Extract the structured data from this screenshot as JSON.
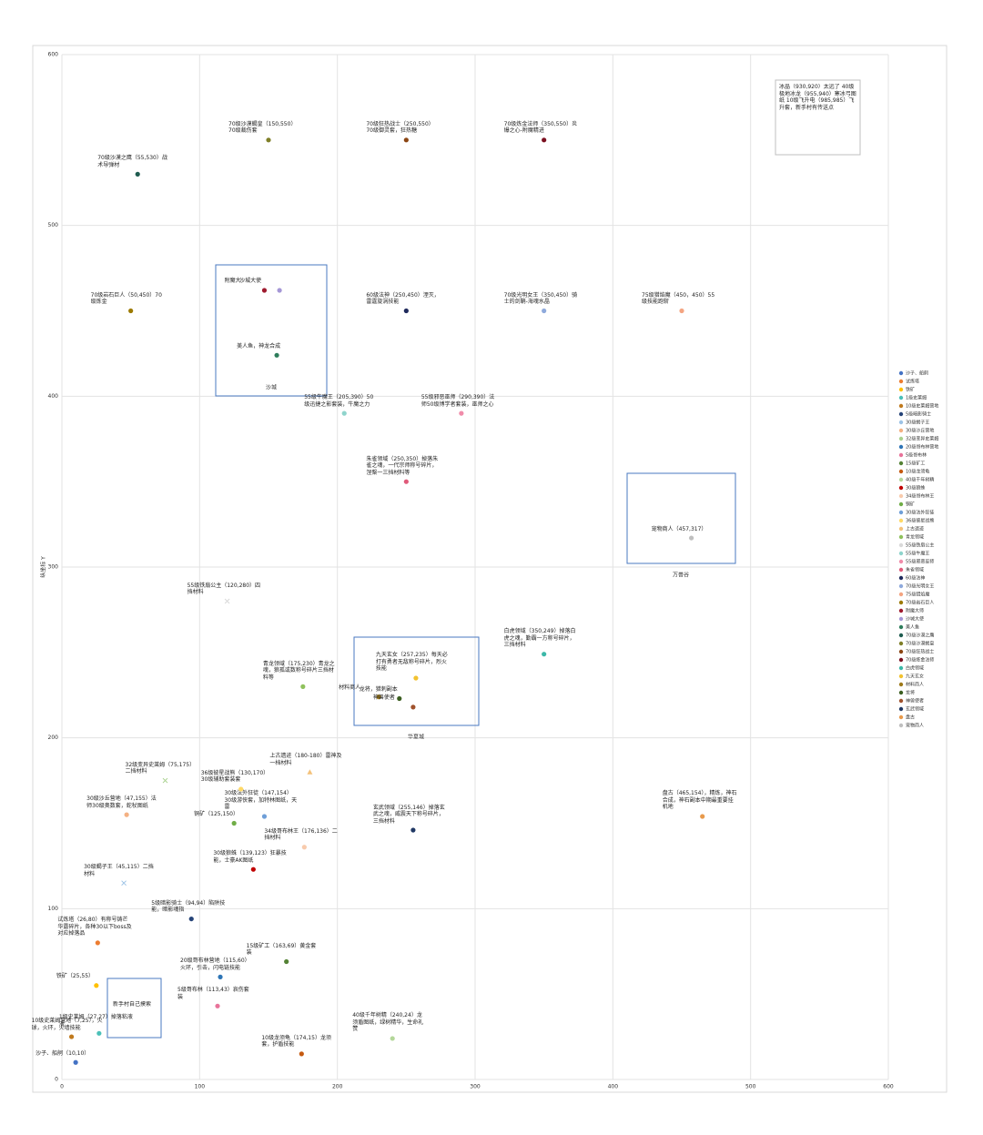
{
  "chart_data": {
    "type": "scatter",
    "ylabel": "纵坐标 Y",
    "xlim": [
      0,
      600
    ],
    "ylim": [
      0,
      600
    ],
    "xticks": [
      0,
      100,
      200,
      300,
      400,
      500,
      600
    ],
    "yticks": [
      0,
      100,
      200,
      300,
      400,
      500,
      600
    ],
    "grid": true,
    "legend": "right",
    "series": [
      {
        "name": "沙子、船舸",
        "color": "#4472c4",
        "marker": "circle",
        "x": [
          10
        ],
        "values": [
          10
        ],
        "label": "沙子、船舸（10,10）"
      },
      {
        "name": "试炼塔",
        "color": "#ed7d31",
        "marker": "circle",
        "x": [
          26
        ],
        "values": [
          80
        ],
        "label": "试炼塔（26,80）有称号铸芒华露碎片，各种30以下boss及对应掉落品"
      },
      {
        "name": "铁矿",
        "color": "#ffc000",
        "marker": "circle",
        "x": [
          25
        ],
        "values": [
          55
        ],
        "label": "铁矿（25,55）"
      },
      {
        "name": "1级史莱姆",
        "color": "#4bc0b8",
        "marker": "circle",
        "x": [
          27
        ],
        "values": [
          27
        ],
        "label": "1级史莱姆（27,27）掉落粘液液"
      },
      {
        "name": "10级史莱姆营地",
        "color": "#c07a1e",
        "marker": "circle",
        "x": [
          7
        ],
        "values": [
          25
        ],
        "label": "10级史莱姆营地（7,25），火球，火环，火墙技能"
      },
      {
        "name": "5级暗影骑士",
        "color": "#264478",
        "marker": "circle",
        "x": [
          94
        ],
        "values": [
          94
        ],
        "label": "5级暗影骑士（94,94）陷阱技能，暗影魂指"
      },
      {
        "name": "30级蝎子王",
        "color": "#9dc3e6",
        "marker": "x",
        "x": [
          45
        ],
        "values": [
          115
        ],
        "label": "30级蝎子王（45,115）二挡材料"
      },
      {
        "name": "30级沙丘营地",
        "color": "#f4b183",
        "marker": "circle",
        "x": [
          47
        ],
        "values": [
          155
        ],
        "label": "30级沙丘营地（47,155）法师30级奥数套，蛇杖图纸"
      },
      {
        "name": "32级变异史莱姆",
        "color": "#a9d18e",
        "marker": "x",
        "x": [
          75
        ],
        "values": [
          175
        ],
        "label": "32级变异史莱姆（75,175）二挡材料"
      },
      {
        "name": "20级哥布林营地",
        "color": "#2e75b6",
        "marker": "circle",
        "x": [
          115
        ],
        "values": [
          60
        ],
        "label": "20级哥布林营地（115,60）火环，引击，闪电链技能"
      },
      {
        "name": "5级哥布林",
        "color": "#e8739a",
        "marker": "circle",
        "x": [
          113
        ],
        "values": [
          43
        ],
        "label": "5级哥布林（113,43）哀伤套装"
      },
      {
        "name": "15级矿工",
        "color": "#548235",
        "marker": "circle",
        "x": [
          163
        ],
        "values": [
          69
        ],
        "label": "15级矿工（163,69）黄金套装"
      },
      {
        "name": "10级龙须龟",
        "color": "#c55a11",
        "marker": "circle",
        "x": [
          174
        ],
        "values": [
          15
        ],
        "label": "10级龙须龟（174,15）龙须套，护盾技能"
      },
      {
        "name": "40级千年树精",
        "color": "#b4d79a",
        "marker": "circle",
        "x": [
          240
        ],
        "values": [
          24
        ],
        "label": "40级千年树精（240,24）龙须盾图纸，绿树精华，生命礼赞"
      },
      {
        "name": "30级狼蛛",
        "color": "#c00000",
        "marker": "circle",
        "x": [
          139
        ],
        "values": [
          123
        ],
        "label": "30级狼蛛（139,123）狂暴技能，士豪AK图纸"
      },
      {
        "name": "34级哥布林王",
        "color": "#f8cbad",
        "marker": "circle",
        "x": [
          176
        ],
        "values": [
          136
        ],
        "label": "34级哥布林王（176,136）二挡材料"
      },
      {
        "name": "铜矿",
        "color": "#70ad47",
        "marker": "circle",
        "x": [
          125
        ],
        "values": [
          150
        ],
        "label": "铜矿（125,150）"
      },
      {
        "name": "30级法外狂徒",
        "color": "#6f9fd8",
        "marker": "circle",
        "x": [
          147
        ],
        "values": [
          154
        ],
        "label": "30级法外狂徒（147,154）30级游侠套，加特林图纸，天雷"
      },
      {
        "name": "36级彼星战熊",
        "color": "#ffd966",
        "marker": "circle",
        "x": [
          130
        ],
        "values": [
          170
        ],
        "label": "36级彼星战熊（130,170）30级辅助套装套"
      },
      {
        "name": "上古遗迹",
        "color": "#f4c27a",
        "marker": "triangle",
        "x": [
          180
        ],
        "values": [
          180
        ],
        "label": "上古遗迹（180-180）雷神及一档材料"
      },
      {
        "name": "青龙领域",
        "color": "#8fc15c",
        "marker": "circle",
        "x": [
          175
        ],
        "values": [
          230
        ],
        "label": "青龙领域（175,230）青龙之魂，狼孤或数称号碎片三挡材料等"
      },
      {
        "name": "55级铁扇公主",
        "color": "#d9d9d9",
        "marker": "x",
        "x": [
          120
        ],
        "values": [
          280
        ],
        "label": "55级铁扇公主（120,280）四挡材料"
      },
      {
        "name": "55级牛魔王",
        "color": "#8fd4cc",
        "marker": "circle",
        "x": [
          205
        ],
        "values": [
          390
        ],
        "label": "55级牛魔王（205,390）50级迅捷之影套装，牛魔之力"
      },
      {
        "name": "55级邪恶巫师",
        "color": "#f08caa",
        "marker": "circle",
        "x": [
          290
        ],
        "values": [
          390
        ],
        "label": "55级邪恶巫师（290,390）法师50级博学者套装，巫师之心"
      },
      {
        "name": "朱雀领域",
        "color": "#e05a7a",
        "marker": "circle",
        "x": [
          250
        ],
        "values": [
          350
        ],
        "label": "朱雀领域（250,350）掉落朱雀之魂，一代宗师称号碎片，涅槃一三挡材料等"
      },
      {
        "name": "60级法神",
        "color": "#1f2a5c",
        "marker": "circle",
        "x": [
          250
        ],
        "values": [
          450
        ],
        "label": "60级法神（250,450）湮灭，雷霆旋涡技能"
      },
      {
        "name": "70级光明女王",
        "color": "#8faadc",
        "marker": "circle",
        "x": [
          350
        ],
        "values": [
          450
        ],
        "label": "70级光明女王（350,450）骑士的剑鞘-海魂水晶"
      },
      {
        "name": "75级猎焰魔",
        "color": "#f4a582",
        "marker": "circle",
        "x": [
          450
        ],
        "values": [
          450
        ],
        "label": "75级猎焰魔（450，450）55级技能跑斩"
      },
      {
        "name": "70级岩石巨人",
        "color": "#9c7a00",
        "marker": "circle",
        "x": [
          50
        ],
        "values": [
          450
        ],
        "label": "70级岩石巨人（50,450）70级炼金"
      },
      {
        "name": "附魔大师",
        "color": "#9e1a2e",
        "marker": "circle",
        "x": [
          147
        ],
        "values": [
          462
        ],
        "label": "附魔大"
      },
      {
        "name": "沙城大使",
        "color": "#a597d6",
        "marker": "circle",
        "x": [
          158
        ],
        "values": [
          462
        ],
        "label": "沙城大使"
      },
      {
        "name": "美人鱼",
        "color": "#2e7d5b",
        "marker": "circle",
        "x": [
          156
        ],
        "values": [
          424
        ],
        "label": "美人鱼，神龙合成"
      },
      {
        "name": "70级沙漠之鹰",
        "color": "#1f5c50",
        "marker": "circle",
        "x": [
          55
        ],
        "values": [
          530
        ],
        "label": "70级沙漠之鹰（55,530）战术导弹材"
      },
      {
        "name": "70级沙漠蝎皇",
        "color": "#7f7f28",
        "marker": "circle",
        "x": [
          150
        ],
        "values": [
          550
        ],
        "label": "70级沙漠蝎皇（150,550）70级裁伤套"
      },
      {
        "name": "70级狂热战士",
        "color": "#8b4513",
        "marker": "circle",
        "x": [
          250
        ],
        "values": [
          550
        ],
        "label": "70级狂热战士（250,550）70级御灵套，狂热糖"
      },
      {
        "name": "70级炼金法师",
        "color": "#7b1020",
        "marker": "circle",
        "x": [
          350
        ],
        "values": [
          550
        ],
        "label": "70级炼金法师（350,550）炎爆之心-附魔精进"
      },
      {
        "name": "白虎领域",
        "color": "#3cb8a8",
        "marker": "circle",
        "x": [
          350
        ],
        "values": [
          249
        ],
        "label": "白虎领域（350,249）掉落白虎之魂，勤霸一方称号碎片，三挡材料"
      },
      {
        "name": "九天玄女",
        "color": "#f2c230",
        "marker": "circle",
        "x": [
          257
        ],
        "values": [
          235
        ],
        "label": "九天玄女（257,235）每天必打有勇者无敌称号碎片，烈火技能"
      },
      {
        "name": "材料商人",
        "color": "#9e7a1a",
        "marker": "circle",
        "x": [
          230
        ],
        "values": [
          224
        ],
        "label": "材料商人"
      },
      {
        "name": "龙将",
        "color": "#3b5e20",
        "marker": "circle",
        "x": [
          245
        ],
        "values": [
          223
        ],
        "label": "龙将，猎刺副本"
      },
      {
        "name": "神兽使者",
        "color": "#a0522d",
        "marker": "circle",
        "x": [
          255
        ],
        "values": [
          218
        ],
        "label": "神兽使者"
      },
      {
        "name": "玄武领域",
        "color": "#203864",
        "marker": "circle",
        "x": [
          255
        ],
        "values": [
          146
        ],
        "label": "玄武领域（255,146）掉落玄武之魂，威震天下称号碎片，三挡材料"
      },
      {
        "name": "盘古",
        "color": "#e89a4c",
        "marker": "circle",
        "x": [
          465
        ],
        "values": [
          154
        ],
        "label": "盘古（465,154），精炼，神石合成，神石副本中期最重要挂机地"
      },
      {
        "name": "宠物商人",
        "color": "#bfbfbf",
        "marker": "circle",
        "x": [
          457
        ],
        "values": [
          317
        ],
        "label": "宠物商人（457,317）"
      }
    ],
    "regions": [
      {
        "label": "沙城"
      },
      {
        "label": "华夏城"
      },
      {
        "label": "万兽谷"
      },
      {
        "label": "新手村自己摸索"
      }
    ],
    "note": "冰晶（930,920）太远了 40级极地冰龙（955,940）寒冰弓图纸 10级飞升电（985,985）飞升套，新手村有传送点"
  }
}
